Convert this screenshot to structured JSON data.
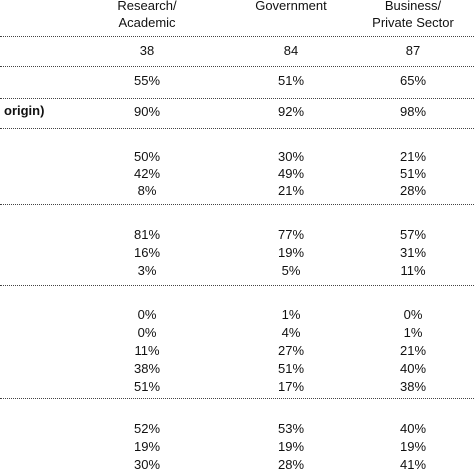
{
  "headers": [
    "Research/\nAcademic",
    "Government",
    "Business/\nPrivate Sector"
  ],
  "header_lines": [
    [
      "Research/",
      "Academic"
    ],
    [
      "Government"
    ],
    [
      "Business/",
      "Private Sector"
    ]
  ],
  "row_label_partial": "origin)",
  "rows": [
    {
      "cells": [
        "38",
        "84",
        "87"
      ]
    },
    {
      "cells": [
        "55%",
        "51%",
        "65%"
      ]
    },
    {
      "cells": [
        "90%",
        "92%",
        "98%"
      ]
    },
    {
      "cells": [
        "50%",
        "30%",
        "21%"
      ]
    },
    {
      "cells": [
        "42%",
        "49%",
        "51%"
      ]
    },
    {
      "cells": [
        "8%",
        "21%",
        "28%"
      ]
    },
    {
      "cells": [
        "81%",
        "77%",
        "57%"
      ]
    },
    {
      "cells": [
        "16%",
        "19%",
        "31%"
      ]
    },
    {
      "cells": [
        "3%",
        "5%",
        "11%"
      ]
    },
    {
      "cells": [
        "0%",
        "1%",
        "0%"
      ]
    },
    {
      "cells": [
        "0%",
        "4%",
        "1%"
      ]
    },
    {
      "cells": [
        "11%",
        "27%",
        "21%"
      ]
    },
    {
      "cells": [
        "38%",
        "51%",
        "40%"
      ]
    },
    {
      "cells": [
        "51%",
        "17%",
        "38%"
      ]
    },
    {
      "cells": [
        "52%",
        "53%",
        "40%"
      ]
    },
    {
      "cells": [
        "19%",
        "19%",
        "19%"
      ]
    },
    {
      "cells": [
        "30%",
        "28%",
        "41%"
      ]
    }
  ]
}
